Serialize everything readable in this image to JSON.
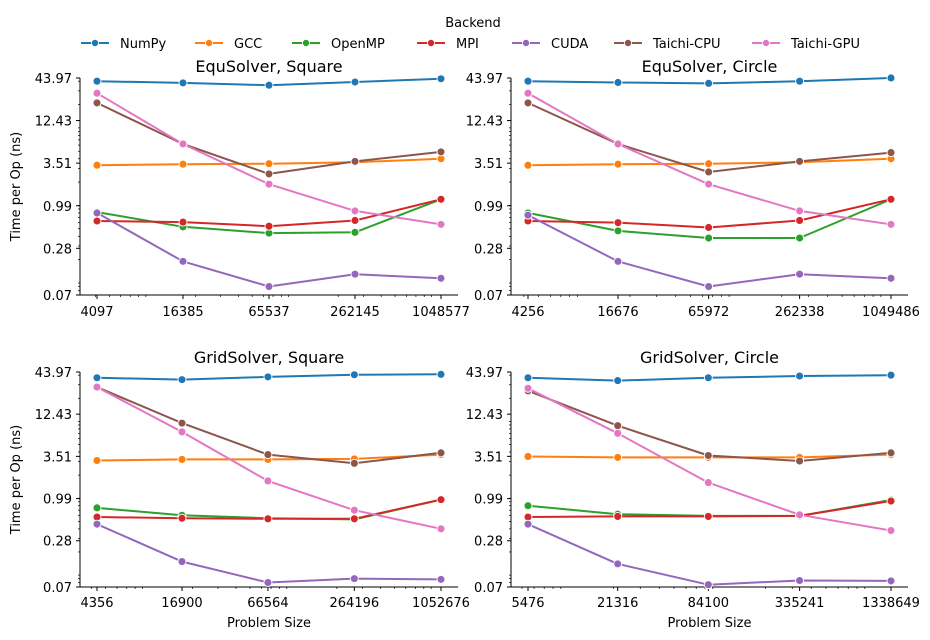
{
  "legend": {
    "title": "Backend",
    "entries": [
      {
        "name": "NumPy",
        "color": "#1f77b4"
      },
      {
        "name": "GCC",
        "color": "#ff7f0e"
      },
      {
        "name": "OpenMP",
        "color": "#2ca02c"
      },
      {
        "name": "MPI",
        "color": "#d62728"
      },
      {
        "name": "CUDA",
        "color": "#9467bd"
      },
      {
        "name": "Taichi-CPU",
        "color": "#8c564b"
      },
      {
        "name": "Taichi-GPU",
        "color": "#e377c2"
      }
    ],
    "placement": "top-center"
  },
  "chart_data": [
    {
      "type": "line",
      "title": "EquSolver, Square",
      "xlabel": "",
      "ylabel": "Time per Op (ns)",
      "xscale": "log",
      "yscale": "log",
      "x": [
        4097,
        16385,
        65537,
        262145,
        1048577
      ],
      "xticks": [
        "4097",
        "16385",
        "65537",
        "262145",
        "1048577"
      ],
      "yticks": [
        "0.07",
        "0.28",
        "0.99",
        "3.51",
        "12.43",
        "43.97"
      ],
      "ylim": [
        0.07,
        43.97
      ],
      "series": [
        {
          "name": "NumPy",
          "values": [
            40.0,
            38.0,
            35.5,
            39.0,
            43.0
          ]
        },
        {
          "name": "GCC",
          "values": [
            3.3,
            3.4,
            3.45,
            3.6,
            4.0
          ]
        },
        {
          "name": "OpenMP",
          "values": [
            0.82,
            0.53,
            0.44,
            0.45,
            1.2
          ]
        },
        {
          "name": "MPI",
          "values": [
            0.63,
            0.61,
            0.54,
            0.64,
            1.2
          ]
        },
        {
          "name": "CUDA",
          "values": [
            0.8,
            0.19,
            0.09,
            0.13,
            0.115
          ]
        },
        {
          "name": "Taichi-CPU",
          "values": [
            21.0,
            6.2,
            2.55,
            3.7,
            4.9
          ]
        },
        {
          "name": "Taichi-GPU",
          "values": [
            28.0,
            6.2,
            1.88,
            0.85,
            0.57
          ]
        }
      ]
    },
    {
      "type": "line",
      "title": "EquSolver, Circle",
      "xlabel": "",
      "ylabel": "",
      "xscale": "log",
      "yscale": "log",
      "x": [
        4256,
        16676,
        65972,
        262338,
        1049486
      ],
      "xticks": [
        "4256",
        "16676",
        "65972",
        "262338",
        "1049486"
      ],
      "yticks": [
        "0.07",
        "0.28",
        "0.99",
        "3.51",
        "12.43",
        "43.97"
      ],
      "ylim": [
        0.07,
        43.97
      ],
      "series": [
        {
          "name": "NumPy",
          "values": [
            40.0,
            38.5,
            37.5,
            40.0,
            44.0
          ]
        },
        {
          "name": "GCC",
          "values": [
            3.3,
            3.4,
            3.45,
            3.6,
            4.0
          ]
        },
        {
          "name": "OpenMP",
          "values": [
            0.8,
            0.47,
            0.38,
            0.38,
            1.2
          ]
        },
        {
          "name": "MPI",
          "values": [
            0.63,
            0.6,
            0.52,
            0.64,
            1.2
          ]
        },
        {
          "name": "CUDA",
          "values": [
            0.75,
            0.19,
            0.09,
            0.13,
            0.115
          ]
        },
        {
          "name": "Taichi-CPU",
          "values": [
            21.0,
            6.2,
            2.7,
            3.7,
            4.8
          ]
        },
        {
          "name": "Taichi-GPU",
          "values": [
            28.0,
            6.2,
            1.88,
            0.85,
            0.57
          ]
        }
      ]
    },
    {
      "type": "line",
      "title": "GridSolver, Square",
      "xlabel": "Problem Size",
      "ylabel": "Time per Op (ns)",
      "xscale": "log",
      "yscale": "log",
      "x": [
        4356,
        16900,
        66564,
        264196,
        1052676
      ],
      "xticks": [
        "4356",
        "16900",
        "66564",
        "264196",
        "1052676"
      ],
      "yticks": [
        "0.07",
        "0.28",
        "0.99",
        "3.51",
        "12.43",
        "43.97"
      ],
      "ylim": [
        0.07,
        43.97
      ],
      "series": [
        {
          "name": "NumPy",
          "values": [
            37.0,
            35.0,
            38.0,
            40.5,
            41.0
          ]
        },
        {
          "name": "GCC",
          "values": [
            3.1,
            3.2,
            3.2,
            3.25,
            3.7
          ]
        },
        {
          "name": "OpenMP",
          "values": [
            0.75,
            0.6,
            0.55,
            0.53,
            0.96
          ]
        },
        {
          "name": "MPI",
          "values": [
            0.57,
            0.55,
            0.54,
            0.54,
            0.96
          ]
        },
        {
          "name": "CUDA",
          "values": [
            0.46,
            0.15,
            0.08,
            0.09,
            0.088
          ]
        },
        {
          "name": "Taichi-CPU",
          "values": [
            28.0,
            9.5,
            3.7,
            2.85,
            3.9
          ]
        },
        {
          "name": "Taichi-GPU",
          "values": [
            28.0,
            7.3,
            1.68,
            0.7,
            0.4
          ]
        }
      ]
    },
    {
      "type": "line",
      "title": "GridSolver, Circle",
      "xlabel": "Problem Size",
      "ylabel": "",
      "xscale": "log",
      "yscale": "log",
      "x": [
        5476,
        21316,
        84100,
        335241,
        1338649
      ],
      "xticks": [
        "5476",
        "21316",
        "84100",
        "335241",
        "1338649"
      ],
      "yticks": [
        "0.07",
        "0.28",
        "0.99",
        "3.51",
        "12.43",
        "43.97"
      ],
      "ylim": [
        0.07,
        43.97
      ],
      "series": [
        {
          "name": "NumPy",
          "values": [
            37.0,
            34.0,
            37.0,
            39.0,
            40.0
          ]
        },
        {
          "name": "GCC",
          "values": [
            3.5,
            3.4,
            3.4,
            3.4,
            3.7
          ]
        },
        {
          "name": "OpenMP",
          "values": [
            0.8,
            0.62,
            0.59,
            0.59,
            0.95
          ]
        },
        {
          "name": "MPI",
          "values": [
            0.57,
            0.58,
            0.58,
            0.59,
            0.92
          ]
        },
        {
          "name": "CUDA",
          "values": [
            0.46,
            0.14,
            0.075,
            0.085,
            0.084
          ]
        },
        {
          "name": "Taichi-CPU",
          "values": [
            25.0,
            8.8,
            3.6,
            3.05,
            3.9
          ]
        },
        {
          "name": "Taichi-GPU",
          "values": [
            27.0,
            7.0,
            1.6,
            0.61,
            0.38
          ]
        }
      ]
    }
  ]
}
